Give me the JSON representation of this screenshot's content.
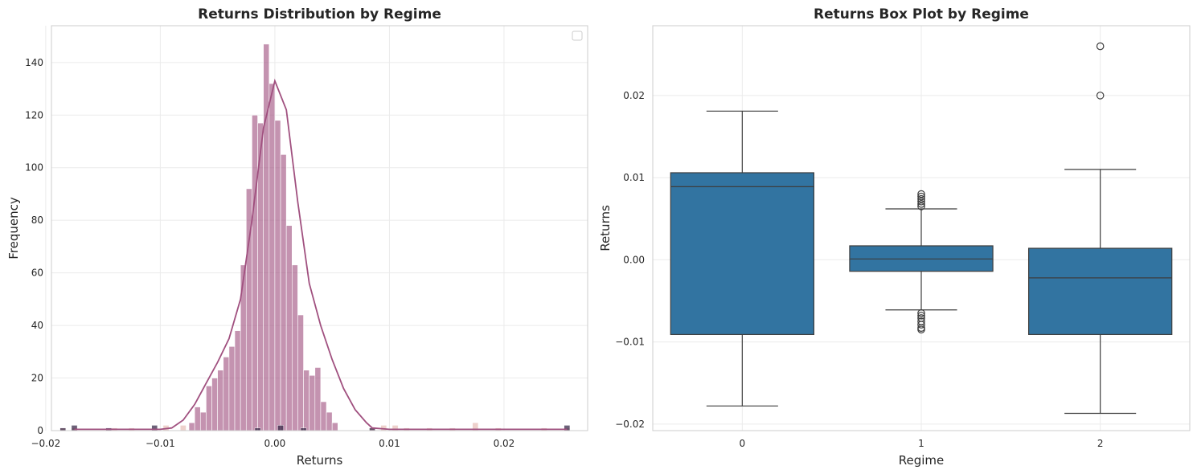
{
  "chart_data": [
    {
      "type": "bar",
      "title": "Returns Distribution by Regime",
      "xlabel": "Returns",
      "ylabel": "Frequency",
      "xlim": [
        -0.0195,
        0.0273
      ],
      "ylim": [
        0,
        154
      ],
      "xticks": [
        -0.02,
        -0.01,
        0.0,
        0.01,
        0.02
      ],
      "xtick_labels": [
        "−0.02",
        "−0.01",
        "0.00",
        "0.01",
        "0.02"
      ],
      "yticks": [
        0,
        20,
        40,
        60,
        80,
        100,
        120,
        140
      ],
      "ytick_labels": [
        "0",
        "20",
        "40",
        "60",
        "80",
        "100",
        "120",
        "140"
      ],
      "grid": true,
      "legend": "top-right, empty",
      "bin_width": 0.0005,
      "series": [
        {
          "color": "#a0507f",
          "bin_start": -0.0075,
          "values": [
            3,
            9,
            7,
            17,
            20,
            23,
            28,
            32,
            38,
            63,
            92,
            120,
            117,
            147,
            132,
            118,
            105,
            78,
            63,
            44,
            23,
            21,
            24,
            11,
            7,
            3
          ]
        },
        {
          "color": "#e8c2bb",
          "x": [
            -0.0185,
            -0.0175,
            -0.014,
            -0.0125,
            -0.0095,
            -0.008,
            0.0085,
            0.0095,
            0.0105,
            0.0115,
            0.0135,
            0.0155,
            0.0175,
            0.0195,
            0.0235,
            0.0255
          ],
          "values": [
            1,
            1,
            1,
            1,
            2,
            2,
            1,
            2,
            2,
            1,
            1,
            1,
            3,
            1,
            1,
            1
          ]
        },
        {
          "color": "#2d1e3e",
          "x": [
            -0.0185,
            -0.0175,
            -0.0145,
            -0.0105,
            -0.0015,
            0.0005,
            0.0025,
            0.0085,
            0.0255
          ],
          "values": [
            1,
            2,
            1,
            2,
            1,
            2,
            1,
            1,
            2
          ]
        }
      ],
      "kde": {
        "color": "#a0507f",
        "x": [
          -0.0175,
          -0.016,
          -0.014,
          -0.012,
          -0.01,
          -0.009,
          -0.008,
          -0.007,
          -0.006,
          -0.005,
          -0.004,
          -0.003,
          -0.002,
          -0.001,
          0.0,
          0.001,
          0.002,
          0.003,
          0.004,
          0.005,
          0.006,
          0.007,
          0.008,
          0.0085,
          0.01,
          0.012,
          0.015,
          0.018,
          0.021,
          0.024,
          0.0255
        ],
        "y": [
          0.5,
          0.5,
          0.5,
          0.5,
          0.5,
          1,
          4,
          10,
          18,
          26,
          35,
          50,
          80,
          115,
          133,
          122,
          87,
          56,
          40,
          27,
          16,
          8,
          3,
          1,
          0.5,
          0.5,
          0.5,
          0.5,
          0.5,
          0.5,
          0.5
        ]
      }
    },
    {
      "type": "box",
      "title": "Returns Box Plot by Regime",
      "xlabel": "Regime",
      "ylabel": "Returns",
      "categories": [
        "0",
        "1",
        "2"
      ],
      "ylim": [
        -0.0208,
        0.0285
      ],
      "yticks": [
        -0.02,
        -0.01,
        0.0,
        0.01,
        0.02
      ],
      "ytick_labels": [
        "−0.02",
        "−0.01",
        "0.00",
        "0.01",
        "0.02"
      ],
      "grid": true,
      "color": "#3274a1",
      "boxes": [
        {
          "category": "0",
          "whisker_low": -0.0178,
          "q1": -0.0091,
          "median": 0.0089,
          "q3": 0.0106,
          "whisker_high": 0.0181,
          "outliers": []
        },
        {
          "category": "1",
          "whisker_low": -0.0061,
          "q1": -0.0014,
          "median": 0.0001,
          "q3": 0.0017,
          "whisker_high": 0.0062,
          "outliers": [
            0.0065,
            0.0068,
            0.0071,
            0.0074,
            0.0077,
            0.008,
            -0.0065,
            -0.0068,
            -0.0071,
            -0.0075,
            -0.0079,
            -0.0083,
            -0.0085
          ]
        },
        {
          "category": "2",
          "whisker_low": -0.0187,
          "q1": -0.0091,
          "median": -0.0022,
          "q3": 0.0014,
          "whisker_high": 0.011,
          "outliers": [
            0.02,
            0.026
          ]
        }
      ]
    }
  ]
}
